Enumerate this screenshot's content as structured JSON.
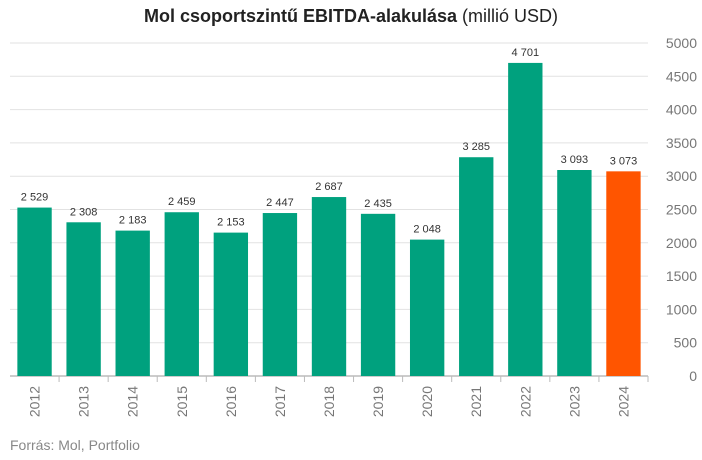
{
  "chart_data": {
    "type": "bar",
    "title_bold": "Mol csoportszintű EBITDA-alakulása",
    "title_rest": "(millió USD)",
    "categories": [
      "2012",
      "2013",
      "2014",
      "2015",
      "2016",
      "2017",
      "2018",
      "2019",
      "2020",
      "2021",
      "2022",
      "2023",
      "2024"
    ],
    "values": [
      2529,
      2308,
      2183,
      2459,
      2153,
      2447,
      2687,
      2435,
      2048,
      3285,
      4701,
      3093,
      3073
    ],
    "data_labels": [
      "2 529",
      "2 308",
      "2 183",
      "2 459",
      "2 153",
      "2 447",
      "2 687",
      "2 435",
      "2 048",
      "3 285",
      "4 701",
      "3 093",
      "3 073"
    ],
    "ylim": [
      0,
      5000
    ],
    "yticks": [
      0,
      500,
      1000,
      1500,
      2000,
      2500,
      3000,
      3500,
      4000,
      4500,
      5000
    ],
    "ytick_labels": [
      "0",
      "500",
      "1000",
      "1500",
      "2000",
      "2500",
      "3000",
      "3500",
      "4000",
      "4500",
      "5000"
    ],
    "y_axis_side": "right",
    "grid": true,
    "bar_color": "#00a17e",
    "highlight_color": "#ff5500",
    "highlight_index": 12,
    "source": "Forrás: Mol, Portfolio"
  }
}
